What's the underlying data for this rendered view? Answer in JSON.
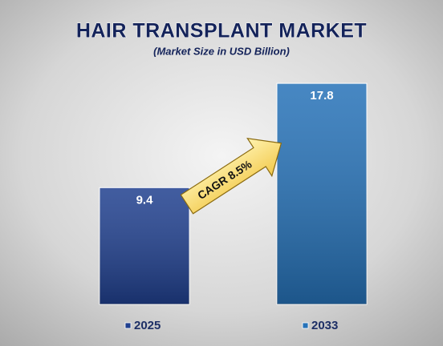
{
  "chart_data": {
    "type": "bar",
    "title": "HAIR TRANSPLANT MARKET",
    "subtitle": "(Market Size in USD Billion)",
    "categories": [
      "2025",
      "2033"
    ],
    "values": [
      9.4,
      17.8
    ],
    "colors": [
      "#20408f",
      "#2672b8"
    ],
    "annotation": "CAGR 8.5%"
  }
}
